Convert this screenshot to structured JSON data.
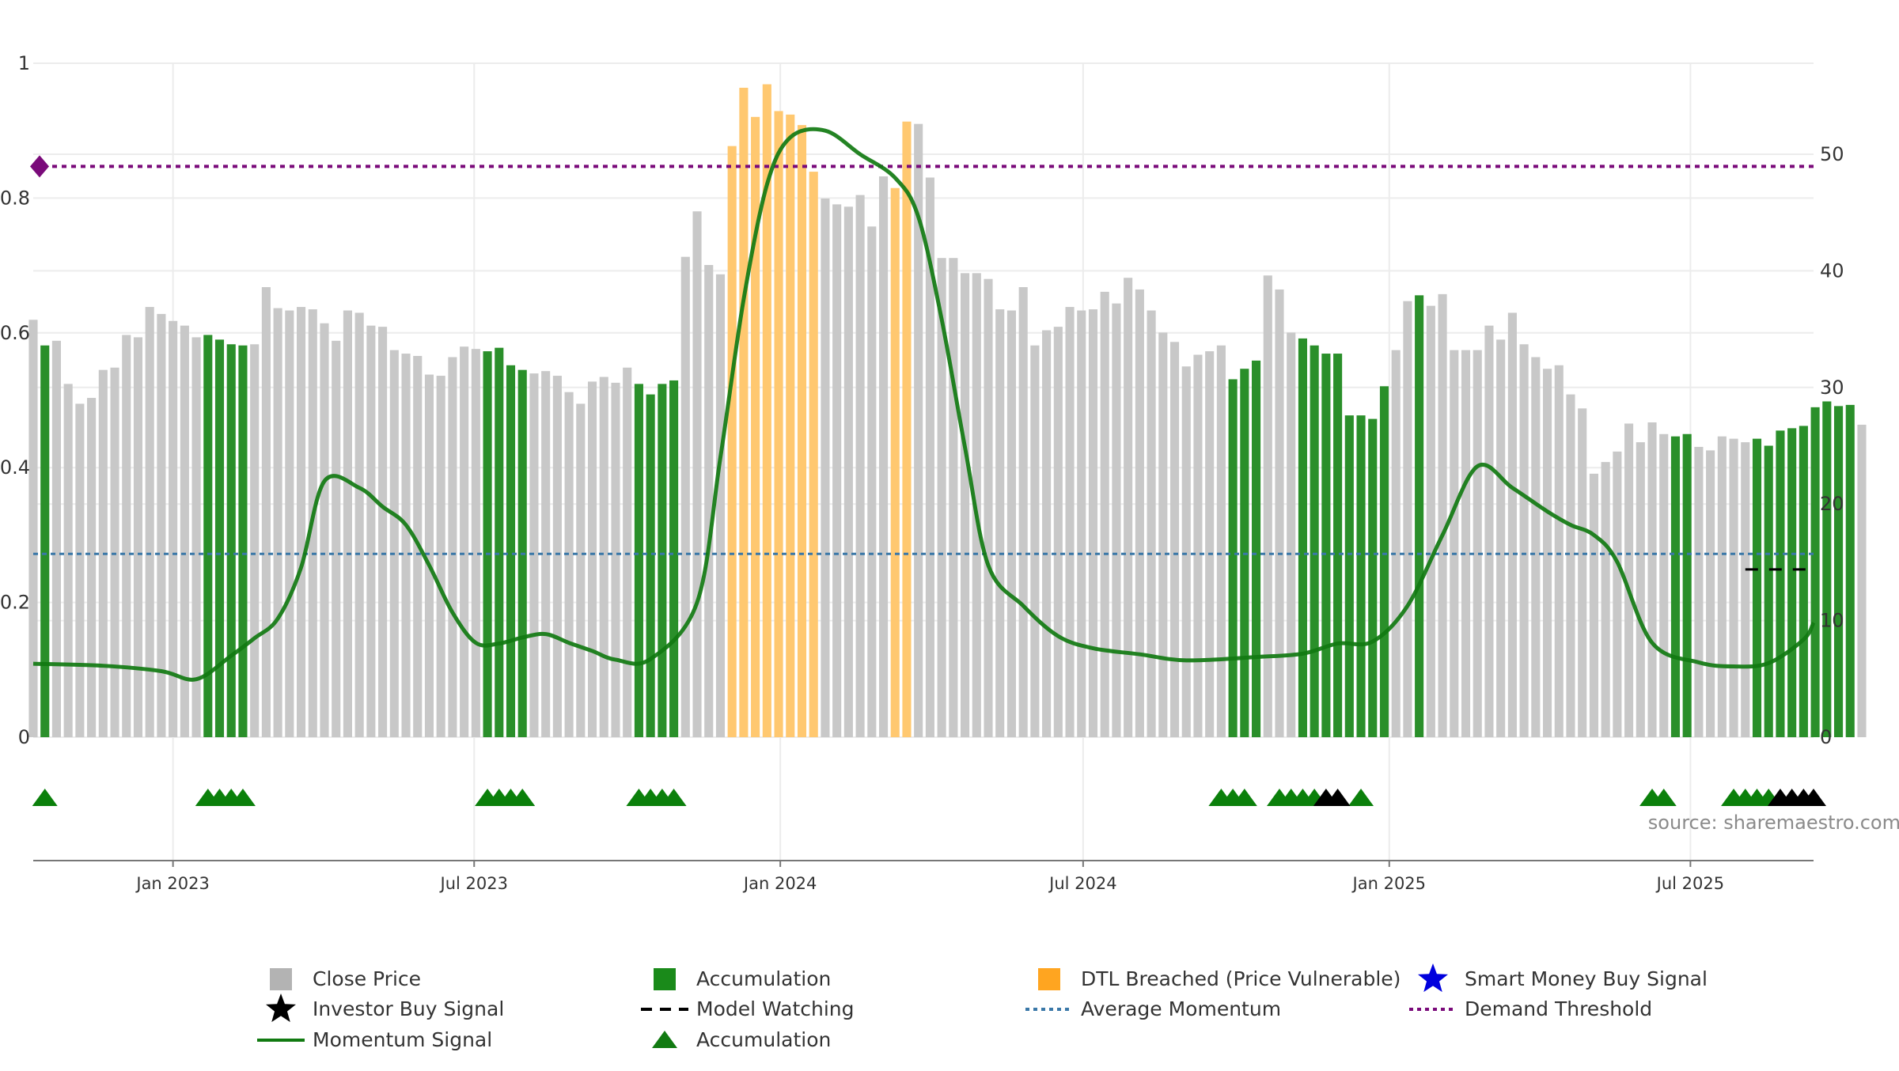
{
  "chart_data": {
    "type": "bar",
    "title": "",
    "left_axis": {
      "ticks": [
        "0",
        "0.2",
        "0.4",
        "0.6",
        "0.8",
        "1"
      ],
      "range": [
        0,
        1
      ]
    },
    "right_axis": {
      "ticks": [
        "0",
        "10",
        "20",
        "30",
        "40",
        "50"
      ],
      "range": [
        0,
        57.8
      ]
    },
    "x_axis": {
      "range": [
        "2022-10-09",
        "2025-09-13"
      ],
      "ticks": [
        {
          "date": "2023-01-01",
          "label": "Jan 2023"
        },
        {
          "date": "2023-07-01",
          "label": "Jul 2023"
        },
        {
          "date": "2024-01-01",
          "label": "Jan 2024"
        },
        {
          "date": "2024-07-01",
          "label": "Jul 2024"
        },
        {
          "date": "2025-01-01",
          "label": "Jan 2025"
        },
        {
          "date": "2025-07-01",
          "label": "Jul 2025"
        }
      ]
    },
    "grid": true,
    "price_bars": {
      "start": "2022-10-09",
      "interval_days": 7,
      "values": [
        35.8,
        33.6,
        34.0,
        30.3,
        28.6,
        29.1,
        31.5,
        31.7,
        34.5,
        34.3,
        36.9,
        36.3,
        35.7,
        35.3,
        34.3,
        34.5,
        34.1,
        33.7,
        33.6,
        33.7,
        38.6,
        36.8,
        36.6,
        36.9,
        36.7,
        35.5,
        34.0,
        36.6,
        36.4,
        35.3,
        35.2,
        33.2,
        32.9,
        32.7,
        31.1,
        31.0,
        32.6,
        33.5,
        33.3,
        33.1,
        33.4,
        31.9,
        31.5,
        31.2,
        31.4,
        31.0,
        29.6,
        28.6,
        30.5,
        30.9,
        30.4,
        31.7,
        30.3,
        29.4,
        30.3,
        30.6,
        41.2,
        45.1,
        40.5,
        39.7,
        50.7,
        55.7,
        53.2,
        56.0,
        53.7,
        53.4,
        52.5,
        48.5,
        46.2,
        45.7,
        45.5,
        46.5,
        43.8,
        48.1,
        47.1,
        52.8,
        52.6,
        48.0,
        41.1,
        41.1,
        39.8,
        39.8,
        39.3,
        36.7,
        36.6,
        38.6,
        33.6,
        34.9,
        35.2,
        36.9,
        36.6,
        36.7,
        38.2,
        37.2,
        39.4,
        38.4,
        36.6,
        34.7,
        33.9,
        31.8,
        32.8,
        33.1,
        33.6,
        30.7,
        31.6,
        32.3,
        39.6,
        38.4,
        34.7,
        34.2,
        33.6,
        32.9,
        32.9,
        27.6,
        27.6,
        27.3,
        30.1,
        33.2,
        37.4,
        37.9,
        37.0,
        38.0,
        33.2,
        33.2,
        33.2,
        35.3,
        34.1,
        36.4,
        33.7,
        32.6,
        31.6,
        31.9,
        29.4,
        28.2,
        22.6,
        23.6,
        24.5,
        26.9,
        25.3,
        27.0,
        26.0,
        25.8,
        26.0,
        24.9,
        24.6,
        25.8,
        25.6,
        25.3,
        25.6,
        25.0,
        26.3,
        26.5,
        26.7,
        28.3,
        28.8,
        28.4,
        28.5,
        26.8
      ],
      "accumulation_weeks": [
        1,
        15,
        16,
        17,
        18,
        39,
        40,
        41,
        42,
        52,
        53,
        54,
        55,
        103,
        104,
        105,
        109,
        110,
        111,
        112,
        113,
        114,
        115,
        116,
        119,
        141,
        142,
        148,
        149,
        150,
        151,
        152,
        153,
        154,
        155,
        156
      ],
      "dtl_breached_weeks": [
        60,
        61,
        62,
        63,
        64,
        65,
        66,
        67,
        74,
        75
      ]
    },
    "momentum_signal": {
      "dates": [
        "2022-10-09",
        "2022-11-20",
        "2022-12-25",
        "2023-01-15",
        "2023-02-05",
        "2023-02-19",
        "2023-03-05",
        "2023-03-19",
        "2023-04-02",
        "2023-04-23",
        "2023-05-07",
        "2023-05-21",
        "2023-06-04",
        "2023-06-18",
        "2023-07-02",
        "2023-07-16",
        "2023-07-30",
        "2023-08-13",
        "2023-08-27",
        "2023-09-10",
        "2023-09-24",
        "2023-10-15",
        "2023-11-12",
        "2023-11-26",
        "2023-12-10",
        "2023-12-24",
        "2024-01-07",
        "2024-01-28",
        "2024-02-18",
        "2024-03-10",
        "2024-03-24",
        "2024-04-07",
        "2024-04-21",
        "2024-05-05",
        "2024-05-26",
        "2024-06-16",
        "2024-07-07",
        "2024-08-04",
        "2024-09-01",
        "2024-10-13",
        "2024-11-10",
        "2024-12-01",
        "2024-12-22",
        "2025-01-12",
        "2025-02-02",
        "2025-02-23",
        "2025-03-16",
        "2025-04-06",
        "2025-04-20",
        "2025-05-04",
        "2025-05-18",
        "2025-06-08",
        "2025-07-06",
        "2025-07-27",
        "2025-08-17",
        "2025-09-07",
        "2025-09-13"
      ],
      "values": [
        0.109,
        0.106,
        0.098,
        0.086,
        0.121,
        0.147,
        0.176,
        0.252,
        0.38,
        0.37,
        0.342,
        0.315,
        0.255,
        0.185,
        0.14,
        0.139,
        0.148,
        0.153,
        0.14,
        0.128,
        0.115,
        0.116,
        0.2,
        0.415,
        0.65,
        0.82,
        0.89,
        0.9,
        0.865,
        0.83,
        0.772,
        0.62,
        0.43,
        0.255,
        0.195,
        0.15,
        0.132,
        0.123,
        0.114,
        0.119,
        0.124,
        0.139,
        0.142,
        0.195,
        0.3,
        0.402,
        0.37,
        0.335,
        0.315,
        0.3,
        0.26,
        0.14,
        0.111,
        0.105,
        0.11,
        0.145,
        0.17
      ]
    },
    "average_momentum": 0.272,
    "demand_threshold": 0.847,
    "model_watching": {
      "start": "2025-08-03",
      "end": "2025-09-13",
      "value": 0.249
    },
    "accumulation_markers": [
      "2022-10-16",
      "2023-01-22",
      "2023-01-29",
      "2023-02-05",
      "2023-02-12",
      "2023-07-09",
      "2023-07-16",
      "2023-07-23",
      "2023-07-30",
      "2023-10-08",
      "2023-10-15",
      "2023-10-22",
      "2023-10-29",
      "2024-09-22",
      "2024-09-29",
      "2024-10-06",
      "2024-10-27",
      "2024-11-03",
      "2024-11-10",
      "2024-11-17",
      "2024-12-15",
      "2025-06-08",
      "2025-06-15",
      "2025-07-27",
      "2025-08-03",
      "2025-08-10",
      "2025-08-17"
    ],
    "investor_buy_markers": [
      "2024-11-24",
      "2024-12-01",
      "2025-08-24",
      "2025-08-31",
      "2025-09-07",
      "2025-09-13"
    ],
    "legend": [
      {
        "label": "Close Price",
        "marker": "square",
        "color": "#b3b3b3"
      },
      {
        "label": "Accumulation",
        "marker": "square",
        "color": "#1a8a1a"
      },
      {
        "label": "DTL Breached (Price Vulnerable)",
        "marker": "square",
        "color": "#ffa520"
      },
      {
        "label": "Smart Money Buy Signal",
        "marker": "star",
        "color": "#0000dd"
      },
      {
        "label": "Investor Buy Signal",
        "marker": "star",
        "color": "#000000"
      },
      {
        "label": "Model Watching",
        "marker": "dashed-line",
        "color": "#000000"
      },
      {
        "label": "Average Momentum",
        "marker": "dotted-line",
        "color": "#3a78a8"
      },
      {
        "label": "Demand Threshold",
        "marker": "dotted-line",
        "color": "#7a0a7a"
      },
      {
        "label": "Momentum Signal",
        "marker": "line",
        "color": "#117a11"
      },
      {
        "label": "Accumulation",
        "marker": "triangle",
        "color": "#117a11"
      }
    ]
  },
  "watermark": "source: sharemaestro.com",
  "colors": {
    "price": "#c8c8c8",
    "accumulation_bar": "#2a8f2a",
    "dtl": "#ffc870",
    "momentum": "#117a11",
    "average": "#3a78a8",
    "threshold": "#7a0a7a",
    "triangle": "#0b800b",
    "star_black": "#000000",
    "grid": "#ececec",
    "axis_text": "#333333"
  }
}
